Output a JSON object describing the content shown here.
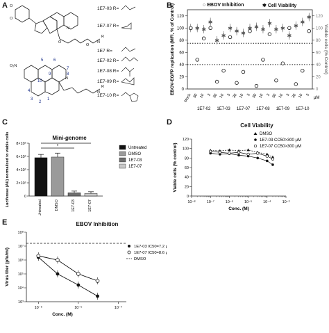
{
  "panels": {
    "A": {
      "letter": "A",
      "top_entries": [
        {
          "name": "1E7-03 R=",
          "group": "ethyl"
        },
        {
          "name": "1E7-07 R=",
          "group": "cyclopropyl"
        }
      ],
      "bottom_entries": [
        {
          "name": "1E7 R=",
          "group": "ethyl"
        },
        {
          "name": "1E7-02 R=",
          "group": "propyl"
        },
        {
          "name": "1E7-08 R=",
          "group": "isobutyl"
        },
        {
          "name": "1E7-09 R=",
          "group": "cyclopropylmethyl"
        },
        {
          "name": "1E7-10 R=",
          "group": "tetrahydrofurfuryl"
        }
      ],
      "ring_numbers": [
        "1",
        "2",
        "3",
        "4",
        "5",
        "6",
        "7",
        "8",
        "9",
        "10"
      ],
      "atom_labels": {
        "o": "O",
        "n": "N",
        "h": "H",
        "r": "R",
        "no2": "O₂N"
      }
    },
    "B": {
      "letter": "B",
      "legend_inhib": "EBOV Inhibition",
      "legend_viab": "Cell Viability",
      "ylabel_left": "EBOV-EGFP replication (MFI, % of Control)",
      "ylabel_right": "Viable cells (% Control)",
      "unit": "μM"
    },
    "C": {
      "letter": "C",
      "title": "Mini-genome",
      "ylabel": "Luciferase (AU) normalized to viable cells",
      "star": "*"
    },
    "D": {
      "letter": "D",
      "title": "Cell Viability",
      "xlabel": "Conc. (M)",
      "ylabel": "Viable cells (% control)"
    },
    "E": {
      "letter": "E",
      "title": "EBOV Inhibition",
      "xlabel": "Conc. (M)",
      "ylabel": "Virus titer (pfu/ml)"
    }
  },
  "chart_data": [
    {
      "id": "B",
      "type": "scatter",
      "categories": [
        "Mock",
        "30",
        "10",
        "3",
        "30",
        "10",
        "3",
        "30",
        "10",
        "3",
        "30",
        "10",
        "3",
        "30",
        "10",
        "3",
        "30",
        "10",
        "3"
      ],
      "group_labels": [
        "1E7-02",
        "1E7-03",
        "1E7-07",
        "1E7-08",
        "1E7-09",
        "1E7-10"
      ],
      "yticks": [
        "0",
        "20",
        "40",
        "60",
        "80",
        "100",
        "120"
      ],
      "series": [
        {
          "name": "EBOV Inhibition",
          "values": [
            100,
            48,
            83,
            100,
            12,
            30,
            85,
            10,
            28,
            95,
            5,
            48,
            90,
            14,
            42,
            100,
            8,
            30,
            95
          ]
        },
        {
          "name": "Cell Viability",
          "values": [
            100,
            100,
            98,
            110,
            80,
            88,
            100,
            95,
            92,
            100,
            102,
            98,
            108,
            98,
            100,
            88,
            104,
            110,
            118
          ]
        }
      ],
      "ylim": [
        0,
        130
      ],
      "reference_lines": [
        75,
        40
      ]
    },
    {
      "id": "C",
      "type": "bar",
      "categories": [
        "Untreated",
        "DMSO",
        "1E7-03",
        "1E7-07"
      ],
      "values": [
        5.8,
        5.9,
        0.5,
        0.4
      ],
      "errors": [
        0.5,
        0.6,
        0.25,
        0.25
      ],
      "colors": [
        "#111111",
        "#9a9a9a",
        "#6e6e6e",
        "#c8c8c8"
      ],
      "yticks": [
        "0",
        "2×10⁵",
        "4×10⁵",
        "6×10⁵",
        "8×10⁵"
      ],
      "ylim": [
        0,
        8
      ],
      "legend": [
        "Untreated",
        "DMSO",
        "1E7-03",
        "1E7-07"
      ]
    },
    {
      "id": "D",
      "type": "line",
      "x_exp": [
        -7,
        -6.5,
        -6,
        -5.5,
        -5,
        -4.5,
        -4,
        -3.7
      ],
      "xticks": [
        "10⁻⁸",
        "10⁻⁷",
        "10⁻⁶",
        "10⁻⁵",
        "10⁻⁴",
        "10⁻³"
      ],
      "yticks": [
        "0",
        "20",
        "40",
        "60",
        "80",
        "100",
        "120"
      ],
      "ylim": [
        0,
        120
      ],
      "series": [
        {
          "name": "DMSO",
          "values": [
            96,
            95,
            97,
            95,
            97,
            92,
            88,
            82
          ]
        },
        {
          "name": "1E7-03 CC50>300 μM",
          "values": [
            90,
            88,
            89,
            86,
            84,
            80,
            74,
            66
          ]
        },
        {
          "name": "1E7-07 CC50>300 μM",
          "values": [
            94,
            92,
            90,
            92,
            88,
            90,
            84,
            78
          ]
        }
      ]
    },
    {
      "id": "E",
      "type": "line",
      "x_exp": [
        -6,
        -5.52,
        -5,
        -4.52
      ],
      "xticks": [
        "10⁻⁶",
        "10⁻⁵",
        "10⁻⁴"
      ],
      "yticks": [
        "10³",
        "10⁴",
        "10⁵",
        "10⁶",
        "10⁷",
        "10⁸"
      ],
      "ylim_exp": [
        3,
        8
      ],
      "dmso_level_exp": 7.2,
      "series": [
        {
          "name": "1E7-03 IC50=7.2 μM",
          "values_exp": [
            6.2,
            5.0,
            4.2,
            3.4
          ]
        },
        {
          "name": "1E7-07 IC50=8.6 μM",
          "values_exp": [
            6.3,
            6.0,
            5.0,
            4.5
          ]
        },
        {
          "name": "DMSO",
          "values_exp": [
            7.2,
            7.2,
            7.2,
            7.2
          ]
        }
      ]
    }
  ]
}
